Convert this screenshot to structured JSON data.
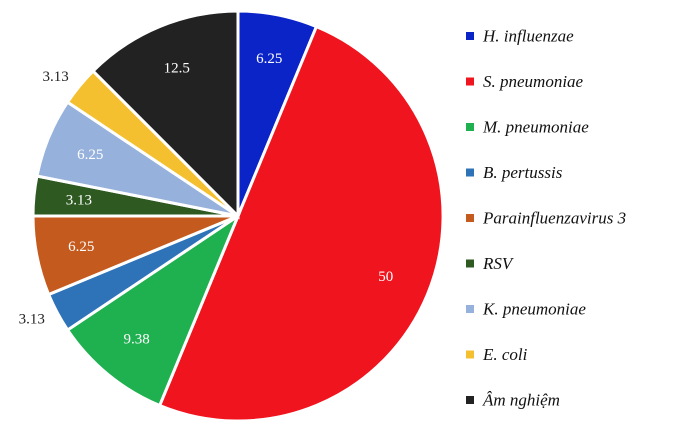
{
  "chart_data": {
    "type": "pie",
    "title": "",
    "categories": [
      "H. influenzae",
      "S. pneumoniae",
      "M. pneumoniae",
      "B. pertussis",
      "Parainfluenzavirus 3",
      "RSV",
      "K. pneumoniae",
      "E. coli",
      "Âm nghiệm"
    ],
    "values": [
      6.25,
      50,
      9.38,
      3.13,
      6.25,
      3.13,
      6.25,
      3.13,
      12.5
    ],
    "data_labels": [
      "6.25",
      "50",
      "9.38",
      "3.13",
      "6.25",
      "3.13",
      "6.25",
      "3.13",
      "12.5"
    ],
    "colors": [
      "#0a24c8",
      "#f0141e",
      "#1fb050",
      "#2e73b8",
      "#c45a1e",
      "#2e5a22",
      "#95b1dc",
      "#f5c030",
      "#222222"
    ],
    "label_colors": [
      "#ffffff",
      "#ffffff",
      "#ffffff",
      "#222222",
      "#ffffff",
      "#ffffff",
      "#ffffff",
      "#222222",
      "#ffffff"
    ],
    "label_placement": [
      "inside",
      "inside",
      "inside",
      "outside",
      "inside",
      "inside",
      "inside",
      "outside",
      "inside"
    ],
    "start_angle_deg": 0,
    "direction": "clockwise",
    "legend_position": "right"
  }
}
